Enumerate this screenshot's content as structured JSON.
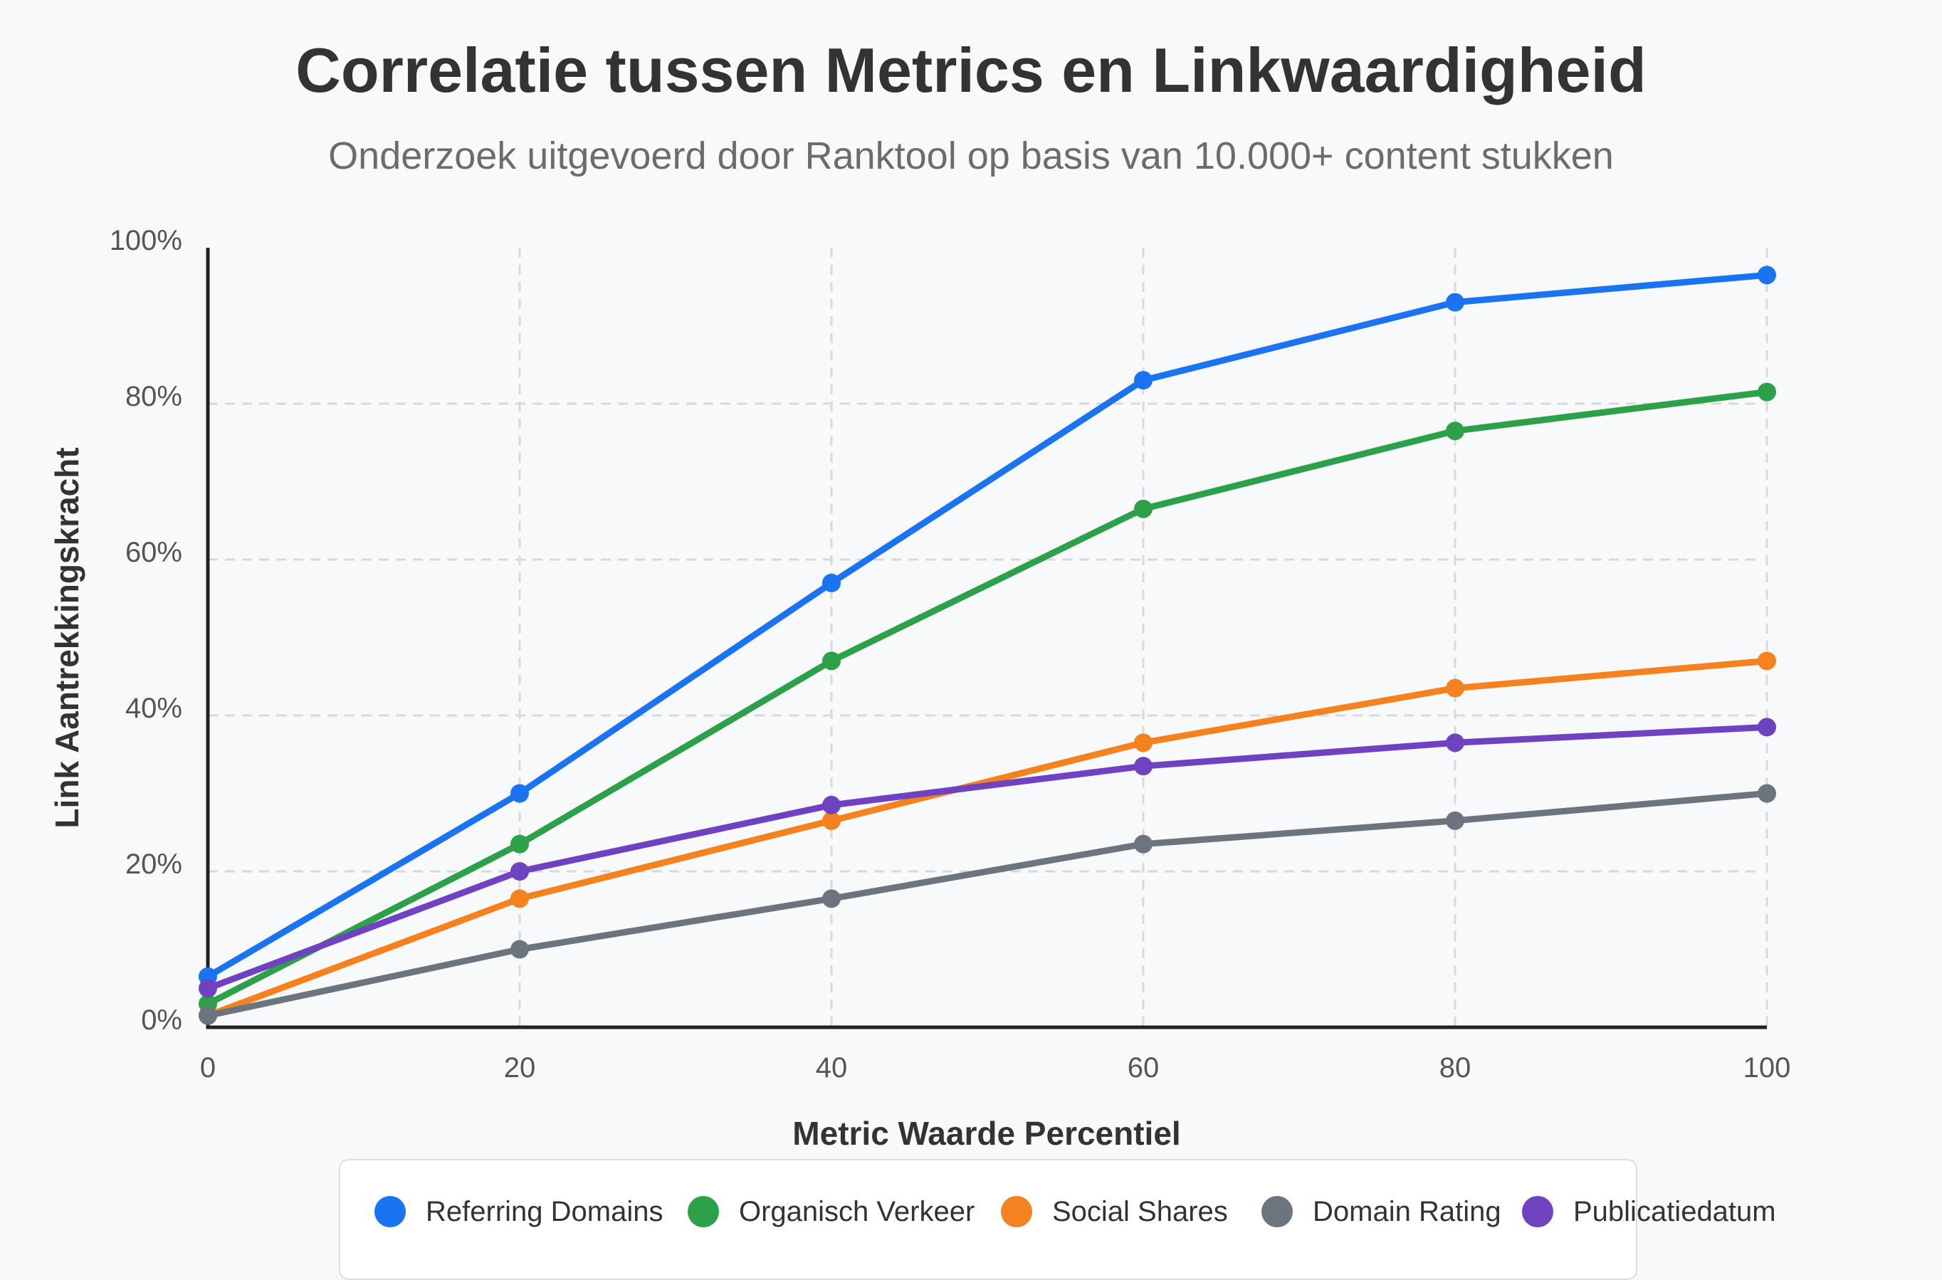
{
  "chart_data": {
    "type": "line",
    "title": "Correlatie tussen Metrics en Linkwaardigheid",
    "subtitle": "Onderzoek uitgevoerd door Ranktool op basis van 10.000+ content stukken",
    "xlabel": "Metric Waarde Percentiel",
    "ylabel": "Link Aantrekkingskracht",
    "x": [
      0,
      20,
      40,
      60,
      80,
      100
    ],
    "x_tick_labels": [
      "0",
      "20",
      "40",
      "60",
      "80",
      "100"
    ],
    "y_tick_labels": [
      "0%",
      "20%",
      "40%",
      "60%",
      "80%",
      "100%"
    ],
    "xlim": [
      0,
      100
    ],
    "ylim": [
      0,
      100
    ],
    "grid": true,
    "legend_position": "bottom",
    "series": [
      {
        "name": "Referring Domains",
        "color": "#1a73f0",
        "values": [
          6.5,
          30,
          57,
          83,
          93,
          96.5
        ]
      },
      {
        "name": "Organisch Verkeer",
        "color": "#2da14a",
        "values": [
          3,
          23.5,
          47,
          66.5,
          76.5,
          81.5
        ]
      },
      {
        "name": "Social Shares",
        "color": "#f5821f",
        "values": [
          1.5,
          16.5,
          26.5,
          36.5,
          43.5,
          47
        ]
      },
      {
        "name": "Domain Rating",
        "color": "#6c757d",
        "values": [
          1.5,
          10,
          16.5,
          23.5,
          26.5,
          30
        ]
      },
      {
        "name": "Publicatiedatum",
        "color": "#6f42c1",
        "values": [
          5,
          20,
          28.5,
          33.5,
          36.5,
          38.5
        ]
      }
    ]
  }
}
